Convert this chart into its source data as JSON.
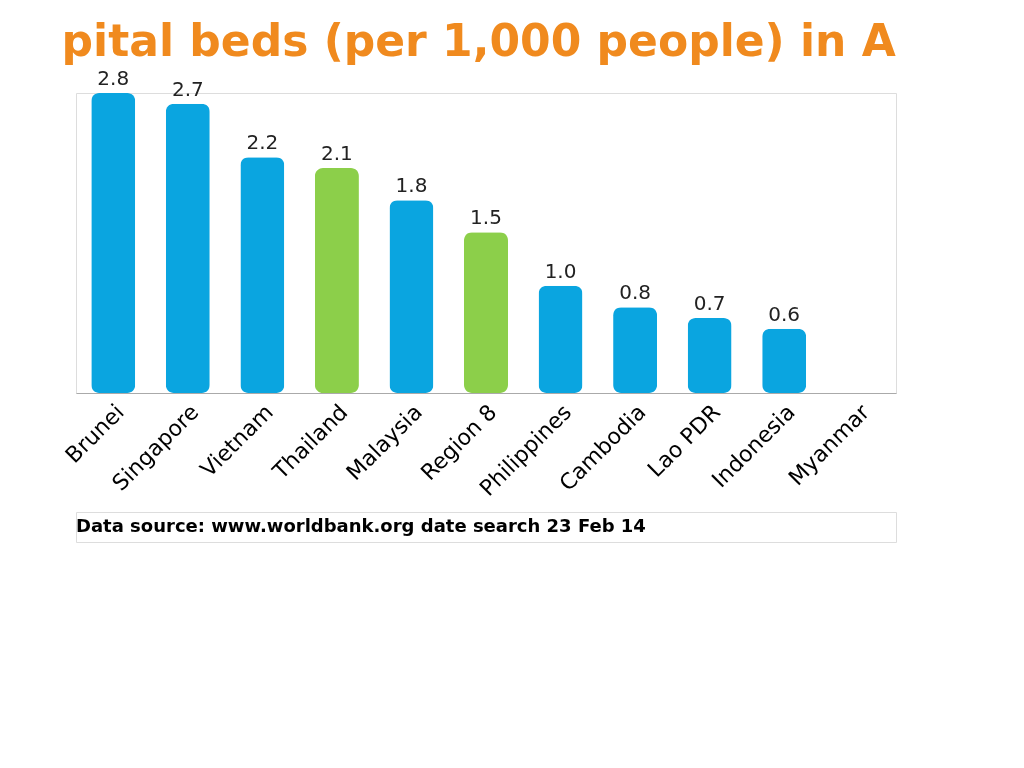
{
  "chart_data": {
    "type": "bar",
    "title": "pital beds (per 1,000 people) in A",
    "categories": [
      "Brunei",
      "Singapore",
      "Vietnam",
      "Thailand",
      "Malaysia",
      "Region 8",
      "Philippines",
      "Cambodia",
      "Lao PDR",
      "Indonesia",
      "Myanmar"
    ],
    "values": [
      2.8,
      2.7,
      2.2,
      2.1,
      1.8,
      1.5,
      1.0,
      0.8,
      0.7,
      0.6,
      null
    ],
    "colors": [
      "#0aa5e0",
      "#0aa5e0",
      "#0aa5e0",
      "#8ccf4a",
      "#0aa5e0",
      "#8ccf4a",
      "#0aa5e0",
      "#0aa5e0",
      "#0aa5e0",
      "#0aa5e0",
      null
    ],
    "value_labels": [
      "2.8",
      "2.7",
      "2.2",
      "2.1",
      "1.8",
      "1.5",
      "1.0",
      "0.8",
      "0.7",
      "0.6",
      null
    ],
    "grid": false,
    "annotations": [
      "Data source:  www.worldbank.org  date search 23 Feb 14"
    ]
  }
}
